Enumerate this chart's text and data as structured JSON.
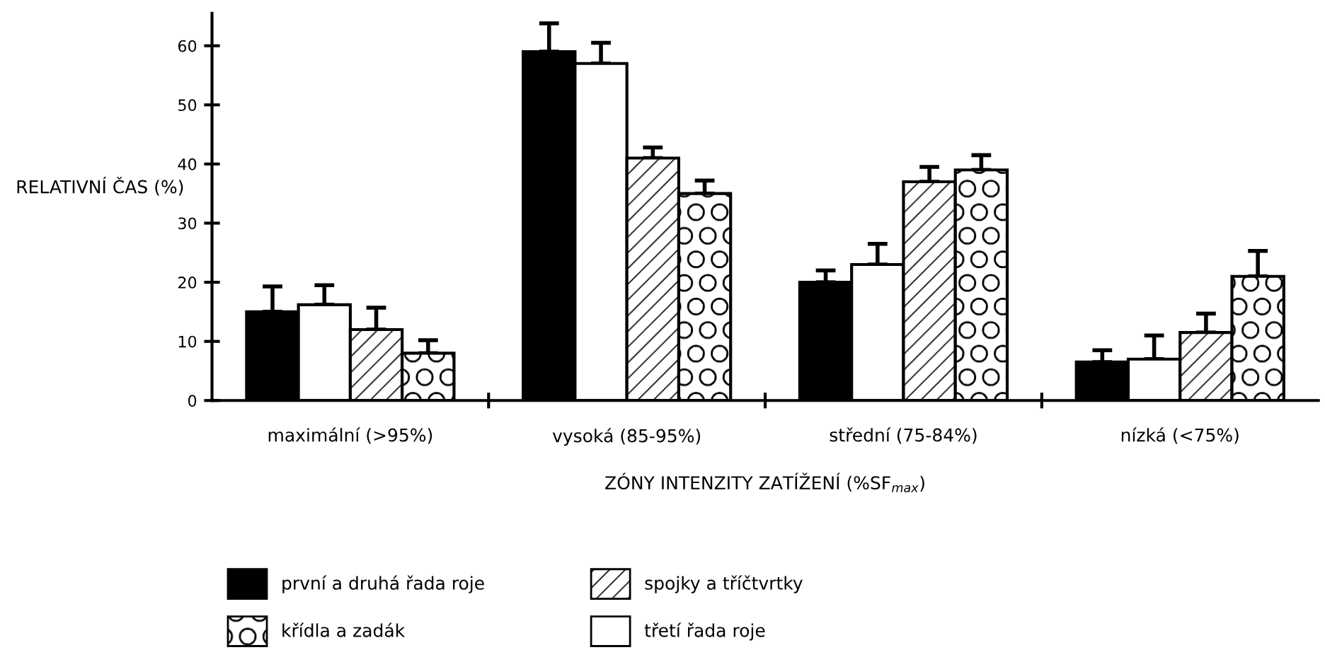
{
  "chart_data": {
    "type": "bar",
    "ylabel": "RELATIVNÍ ČAS (%)",
    "xlabel": "ZÓNY INTENZITY ZATÍŽENÍ (%SF$_{max}$)",
    "categories": [
      "maximální (>95%)",
      "vysoká (85-95%)",
      "střední (75-84%)",
      "nízká (<75%)"
    ],
    "series": [
      {
        "name": "první a druhá řada roje",
        "color": "#000000",
        "values": [
          15,
          59,
          20,
          6.5
        ],
        "errors": [
          [
            15,
            19.3
          ],
          [
            59,
            63.8
          ],
          [
            20,
            22
          ],
          [
            6.5,
            8.5
          ]
        ]
      },
      {
        "name": "třetí řada roje",
        "color": "#ffffff",
        "values": [
          16.2,
          57,
          23,
          7
        ],
        "errors": [
          [
            16.2,
            19.5
          ],
          [
            57,
            60.5
          ],
          [
            23,
            26.5
          ],
          [
            7,
            11
          ]
        ]
      },
      {
        "name": "spojky a tříčtvrtky",
        "color": "#000000",
        "values": [
          12,
          41,
          37,
          11.5
        ],
        "errors": [
          [
            12,
            15.7
          ],
          [
            41,
            42.8
          ],
          [
            37,
            39.5
          ],
          [
            11.5,
            14.7
          ]
        ]
      },
      {
        "name": "křídla a zadák",
        "color": "#000000",
        "values": [
          8,
          35,
          39,
          21
        ],
        "errors": [
          [
            8,
            10.2
          ],
          [
            35,
            37.2
          ],
          [
            39,
            41.5
          ],
          [
            21,
            25.3
          ]
        ]
      }
    ],
    "ylim": [
      0,
      65.5
    ],
    "yticks": [
      0,
      10,
      20,
      30,
      40,
      50,
      60
    ],
    "grid": false,
    "legend": "bottom"
  }
}
